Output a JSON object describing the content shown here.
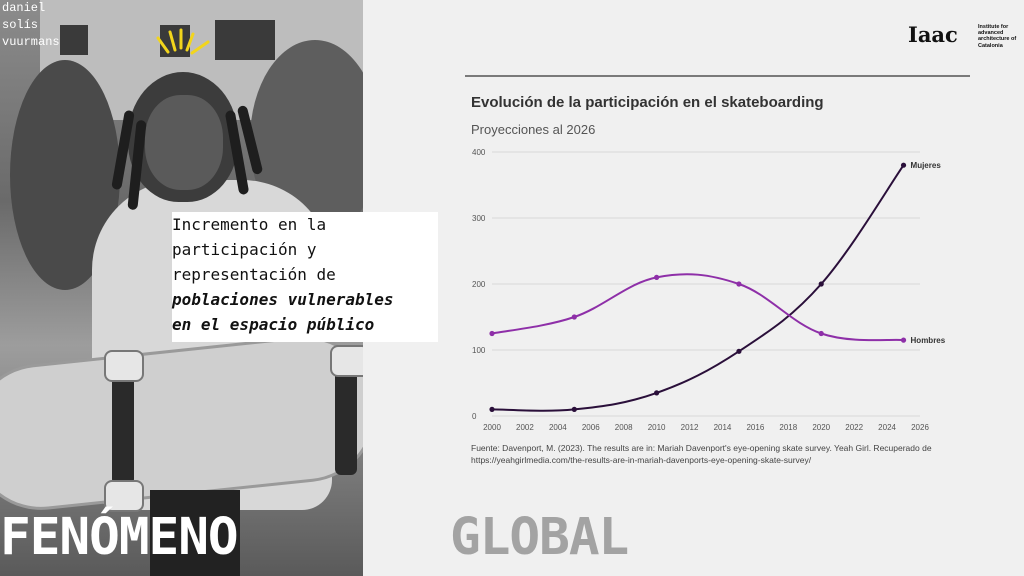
{
  "credit": "daniel\nsolís\nvuurmans",
  "callout": {
    "line1": "Incremento en la",
    "line2": "participación y",
    "line3": "representación de",
    "line4": "poblaciones vulnerables",
    "line5": "en el espacio público"
  },
  "big_left": "FENÓMENO",
  "big_right": "GLOBAL",
  "logo": {
    "mark": "Iaac",
    "text": "Institute for advanced architecture of Catalonia"
  },
  "chart_data": {
    "type": "line",
    "title": "Evolución de la participación en el skateboarding",
    "subtitle": "Proyecciones al 2026",
    "xlabel": "",
    "ylabel": "",
    "xlim": [
      2000,
      2026
    ],
    "ylim": [
      0,
      400
    ],
    "x_ticks": [
      "2000",
      "2002",
      "2004",
      "2006",
      "2008",
      "2010",
      "2012",
      "2014",
      "2016",
      "2018",
      "2020",
      "2022",
      "2024",
      "2026"
    ],
    "y_ticks": [
      "0",
      "100",
      "200",
      "300",
      "400"
    ],
    "grid": true,
    "series": [
      {
        "name": "Mujeres",
        "color": "#2a0f3a",
        "x": [
          2000,
          2005,
          2010,
          2015,
          2020,
          2025
        ],
        "y": [
          10,
          10,
          35,
          98,
          200,
          380
        ]
      },
      {
        "name": "Hombres",
        "color": "#8e2fa8",
        "x": [
          2000,
          2005,
          2010,
          2015,
          2020,
          2025
        ],
        "y": [
          125,
          150,
          210,
          200,
          125,
          115
        ]
      }
    ]
  },
  "source": "Fuente: Davenport, M. (2023). The results are in: Mariah Davenport's eye-opening skate survey. Yeah Girl. Recuperado de https://yeahgirlmedia.com/the-results-are-in-mariah-davenports-eye-opening-skate-survey/"
}
